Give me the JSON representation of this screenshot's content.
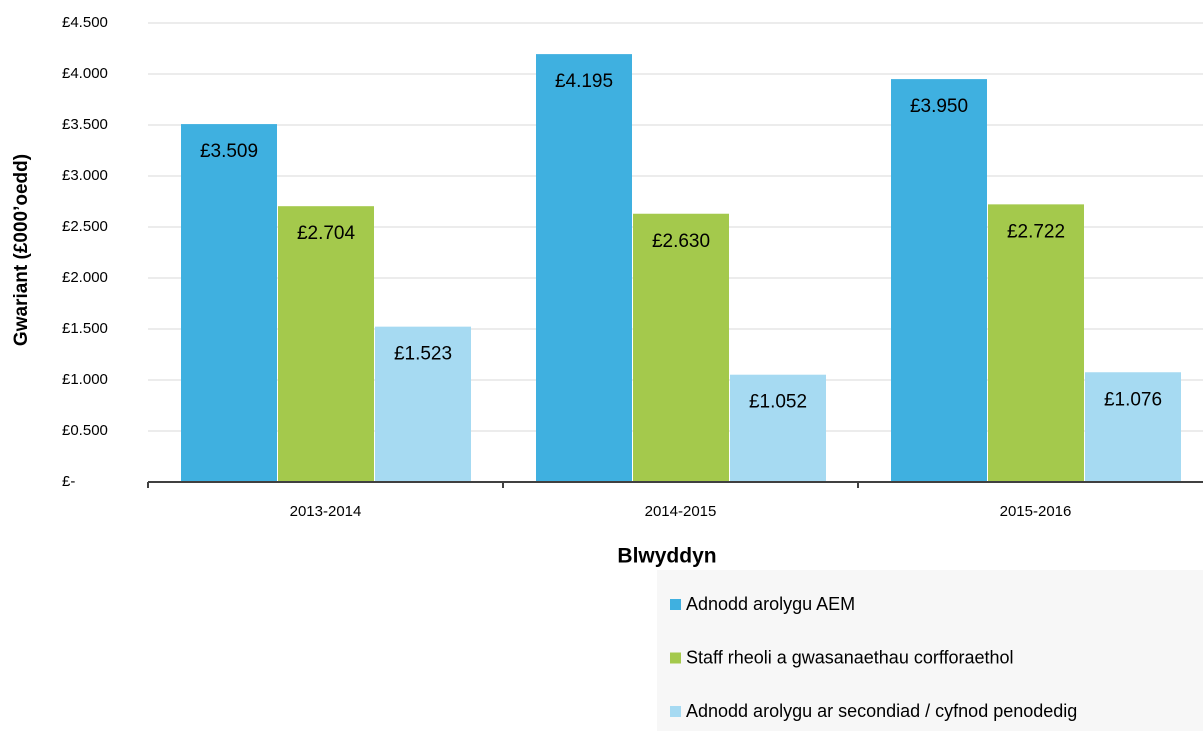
{
  "chart_data": {
    "type": "bar",
    "ylabel": "Gwariant  (£000’oedd)",
    "xlabel": "Blwyddyn",
    "categories": [
      "2013-2014",
      "2014-2015",
      "2015-2016"
    ],
    "series": [
      {
        "name": "Adnodd arolygu AEM",
        "color": "#3fb0e0",
        "values": [
          3.509,
          4.195,
          3.95
        ],
        "value_labels": [
          "£3.509",
          "£4.195",
          "£3.950"
        ]
      },
      {
        "name": "Staff rheoli a gwasanaethau corfforaethol",
        "color": "#a4c94c",
        "values": [
          2.704,
          2.63,
          2.722
        ],
        "value_labels": [
          "£2.704",
          "£2.630",
          "£2.722"
        ]
      },
      {
        "name": "Adnodd arolygu ar secondiad / cyfnod penodedig",
        "color": "#a6daf2",
        "values": [
          1.523,
          1.052,
          1.076
        ],
        "value_labels": [
          "£1.523",
          "£1.052",
          "£1.076"
        ]
      }
    ],
    "ylim": [
      0,
      4.5
    ],
    "yticks": [
      {
        "value": 0,
        "label": "£-"
      },
      {
        "value": 0.5,
        "label": "£0.500"
      },
      {
        "value": 1,
        "label": "£1.000"
      },
      {
        "value": 1.5,
        "label": "£1.500"
      },
      {
        "value": 2,
        "label": "£2.000"
      },
      {
        "value": 2.5,
        "label": "£2.500"
      },
      {
        "value": 3,
        "label": "£3.000"
      },
      {
        "value": 3.5,
        "label": "£3.500"
      },
      {
        "value": 4,
        "label": "£4.000"
      },
      {
        "value": 4.5,
        "label": "£4.500"
      }
    ],
    "grid": true,
    "legend": "bottom-right"
  }
}
